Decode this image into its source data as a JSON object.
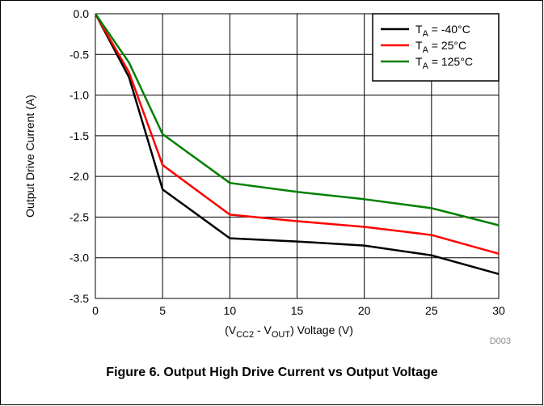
{
  "figure": {
    "caption": "Figure 6. Output High Drive Current vs Output Voltage",
    "code": "D003"
  },
  "chart_data": {
    "type": "line",
    "xlabel_parts": [
      "(V",
      "CC2",
      " - V",
      "OUT",
      ")  Voltage (V)"
    ],
    "ylabel": "Output Drive Current (A)",
    "xlim": [
      0,
      30
    ],
    "ylim": [
      -3.5,
      0
    ],
    "xticks": [
      0,
      5,
      10,
      15,
      20,
      25,
      30
    ],
    "xtick_labels": [
      "0",
      "5",
      "10",
      "15",
      "20",
      "25",
      "30"
    ],
    "yticks": [
      0,
      -0.5,
      -1,
      -1.5,
      -2,
      -2.5,
      -3,
      -3.5
    ],
    "ytick_labels": [
      "0.0",
      "-0.5",
      "-1.0",
      "-1.5",
      "-2.0",
      "-2.5",
      "-3.0",
      "-3.5"
    ],
    "grid": true,
    "legend_position": "top-right",
    "series": [
      {
        "name_parts": [
          "T",
          "A",
          " =  -40°C"
        ],
        "color": "#000000",
        "x": [
          0,
          2.5,
          5,
          10,
          15,
          20,
          25,
          30
        ],
        "y": [
          0,
          -0.78,
          -2.16,
          -2.76,
          -2.8,
          -2.85,
          -2.97,
          -3.2
        ]
      },
      {
        "name_parts": [
          "T",
          "A",
          " = 25°C"
        ],
        "color": "#ff0000",
        "x": [
          0,
          2.5,
          5,
          10,
          15,
          20,
          25,
          30
        ],
        "y": [
          0,
          -0.72,
          -1.86,
          -2.47,
          -2.55,
          -2.62,
          -2.72,
          -2.95
        ]
      },
      {
        "name_parts": [
          "T",
          "A",
          " = 125°C"
        ],
        "color": "#008000",
        "x": [
          0,
          2.5,
          5,
          10,
          15,
          20,
          25,
          30
        ],
        "y": [
          0,
          -0.6,
          -1.48,
          -2.08,
          -2.19,
          -2.28,
          -2.39,
          -2.6
        ]
      }
    ]
  }
}
